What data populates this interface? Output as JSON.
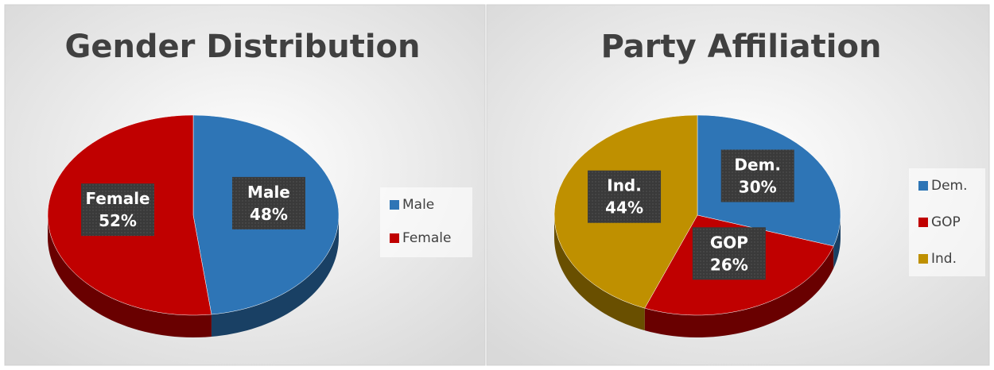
{
  "chart_data": [
    {
      "type": "pie",
      "title": "Gender Distribution",
      "categories": [
        "Male",
        "Female"
      ],
      "values": [
        48,
        52
      ],
      "value_labels": [
        "48%",
        "52%"
      ],
      "colors": [
        "#2e75b6",
        "#c00000"
      ],
      "legend": "right"
    },
    {
      "type": "pie",
      "title": "Party Affiliation",
      "categories": [
        "Dem.",
        "GOP",
        "Ind."
      ],
      "values": [
        30,
        26,
        44
      ],
      "value_labels": [
        "30%",
        "26%",
        "44%"
      ],
      "colors": [
        "#2e75b6",
        "#c00000",
        "#bf9000"
      ],
      "legend": "right"
    }
  ]
}
